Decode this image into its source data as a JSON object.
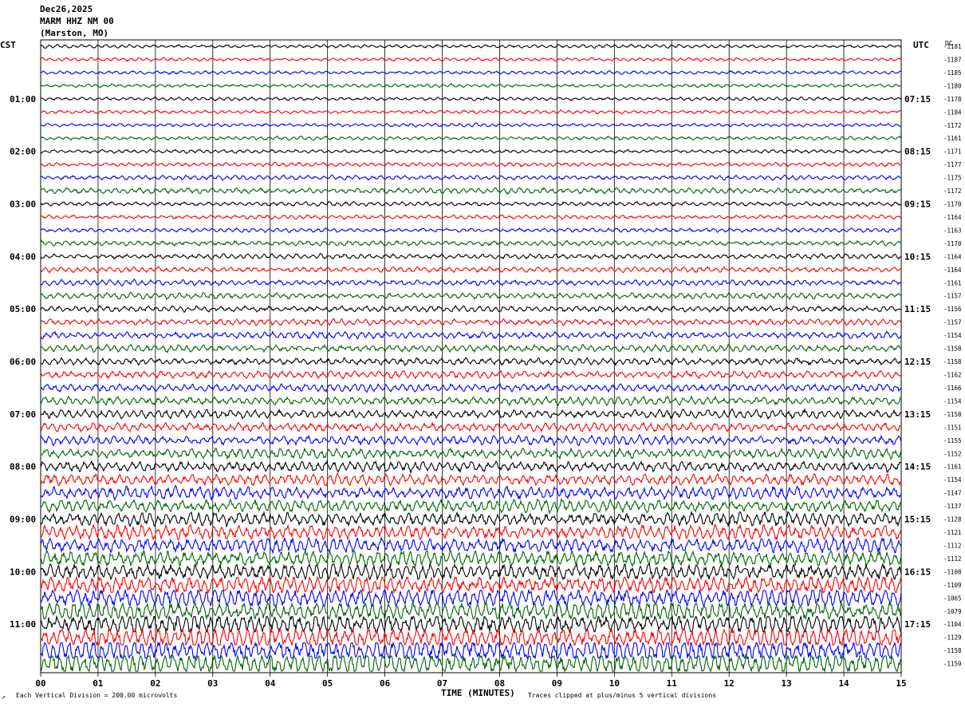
{
  "header": {
    "date": "Dec26,2025",
    "station": "MARM HHZ NM 00",
    "location": "(Marston, MO)"
  },
  "left_timezone": "CST",
  "right_timezone": "UTC",
  "offset_header": "DC",
  "footer": {
    "scale_note": "Each Vertical Division =  200.00 microvolts",
    "clip_note": "Traces clipped at plus/minus 5 vertical divisions",
    "corner_mark": "↗"
  },
  "chart_data": {
    "type": "helicorder",
    "xlabel": "TIME (MINUTES)",
    "xlim": [
      0,
      15
    ],
    "x_ticks": [
      "00",
      "01",
      "02",
      "03",
      "04",
      "05",
      "06",
      "07",
      "08",
      "09",
      "10",
      "11",
      "12",
      "13",
      "14",
      "15"
    ],
    "trace_minutes": 15,
    "trace_colors": [
      "#000000",
      "#ff0000",
      "#0000ff",
      "#006400"
    ],
    "left_hour_labels": [
      {
        "row": 4,
        "label": "01:00"
      },
      {
        "row": 8,
        "label": "02:00"
      },
      {
        "row": 12,
        "label": "03:00"
      },
      {
        "row": 16,
        "label": "04:00"
      },
      {
        "row": 20,
        "label": "05:00"
      },
      {
        "row": 24,
        "label": "06:00"
      },
      {
        "row": 28,
        "label": "07:00"
      },
      {
        "row": 32,
        "label": "08:00"
      },
      {
        "row": 36,
        "label": "09:00"
      },
      {
        "row": 40,
        "label": "10:00"
      },
      {
        "row": 44,
        "label": "11:00"
      }
    ],
    "right_hour_labels": [
      {
        "row": 4,
        "label": "07:15"
      },
      {
        "row": 8,
        "label": "08:15"
      },
      {
        "row": 12,
        "label": "09:15"
      },
      {
        "row": 16,
        "label": "10:15"
      },
      {
        "row": 20,
        "label": "11:15"
      },
      {
        "row": 24,
        "label": "12:15"
      },
      {
        "row": 28,
        "label": "13:15"
      },
      {
        "row": 32,
        "label": "14:15"
      },
      {
        "row": 36,
        "label": "15:15"
      },
      {
        "row": 40,
        "label": "16:15"
      },
      {
        "row": 44,
        "label": "17:15"
      }
    ],
    "dc_offsets": [
      "-1181",
      "-1187",
      "-1185",
      "-1180",
      "-1178",
      "-1184",
      "-1172",
      "-1161",
      "-1171",
      "-1177",
      "-1175",
      "-1172",
      "-1170",
      "-1164",
      "-1163",
      "-1170",
      "-1164",
      "-1164",
      "-1161",
      "-1157",
      "-1156",
      "-1157",
      "-1154",
      "-1158",
      "-1158",
      "-1162",
      "-1166",
      "-1154",
      "-1158",
      "-1151",
      "-1155",
      "-1152",
      "-1161",
      "-1154",
      "-1147",
      "-1137",
      "-1128",
      "-1121",
      "-1112",
      "-1112",
      "-1108",
      "-1109",
      "-1065",
      "-1079",
      "-1104",
      "-1129",
      "-1158",
      "-1159"
    ],
    "trace_amplitude": [
      1.5,
      1.5,
      1.5,
      1.5,
      1.5,
      1.5,
      1.5,
      1.6,
      1.5,
      1.8,
      2.0,
      2.5,
      1.8,
      1.8,
      1.8,
      2.2,
      2.2,
      2.3,
      2.5,
      2.6,
      2.6,
      2.7,
      2.9,
      3.1,
      3.0,
      3.2,
      3.4,
      3.5,
      3.6,
      3.8,
      4.0,
      4.2,
      4.4,
      4.8,
      5.2,
      5.4,
      5.6,
      6.0,
      6.4,
      6.8,
      7.0,
      7.5,
      8.0,
      8.2,
      8.5,
      9.0,
      9.5,
      9.6
    ]
  }
}
